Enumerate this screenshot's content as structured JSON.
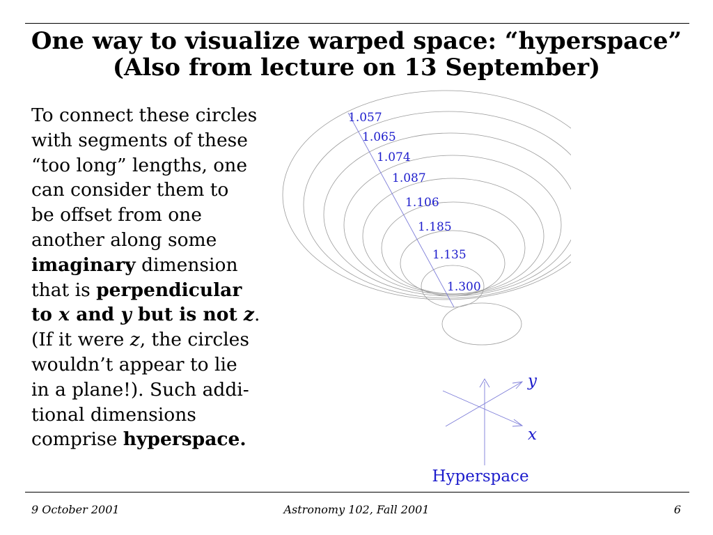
{
  "slide": {
    "title_line1": "One way to visualize warped space: “hyperspace”",
    "title_line2": "(Also from lecture on 13 September)",
    "body": {
      "l1": "To connect these circles",
      "l2": "with segments of these",
      "l3": "“too long” lengths, one",
      "l4": "can consider them to",
      "l5": "be offset from one",
      "l6": "another along some",
      "l7_bold": "imaginary",
      "l7_rest": " dimension",
      "l8_a": "that is ",
      "l8_bold": "perpendicular",
      "l9_a": "to ",
      "l9_x": "x",
      "l9_b": " and ",
      "l9_y": "y",
      "l9_c": " but is not ",
      "l9_z": "z",
      "l9_d": ".",
      "l10_a": "(If it were ",
      "l10_z": "z",
      "l10_b": ", the circles",
      "l11": "wouldn’t appear to lie",
      "l12": "in a plane!). Such addi-",
      "l13": "tional dimensions",
      "l14_a": "comprise ",
      "l14_bold": "hyperspace."
    },
    "figure": {
      "ratios": [
        "1.057",
        "1.065",
        "1.074",
        "1.087",
        "1.106",
        "1.185",
        "1.135",
        "1.300"
      ],
      "axis_y": "y",
      "axis_x": "x",
      "caption": "Hyperspace",
      "label_color": "#1c1ccc",
      "line_color": "#7c7cd8",
      "ellipse_color": "#9a9a9a"
    },
    "footer": {
      "date": "9 October 2001",
      "course": "Astronomy 102, Fall 2001",
      "page": "6"
    }
  }
}
